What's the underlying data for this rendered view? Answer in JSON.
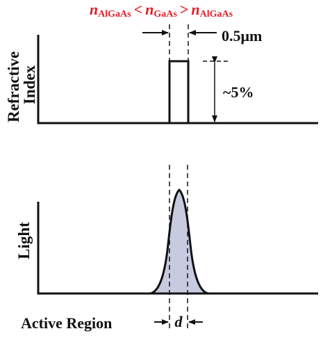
{
  "header": {
    "n_symbol": "n",
    "sub_algaas": "AlGaAs",
    "sub_gaas": "GaAs",
    "less_than": "<",
    "greater_than": ">",
    "color": "#e0202a"
  },
  "refractive_panel": {
    "ylabel_line1": "Refractive",
    "ylabel_line2": "Index",
    "width_label": "0.5μm",
    "step_label": "~5%"
  },
  "light_panel": {
    "ylabel": "Light",
    "fill_color": "#c8cae0"
  },
  "footer": {
    "active_region_label": "Active Region",
    "d_label": "d"
  }
}
